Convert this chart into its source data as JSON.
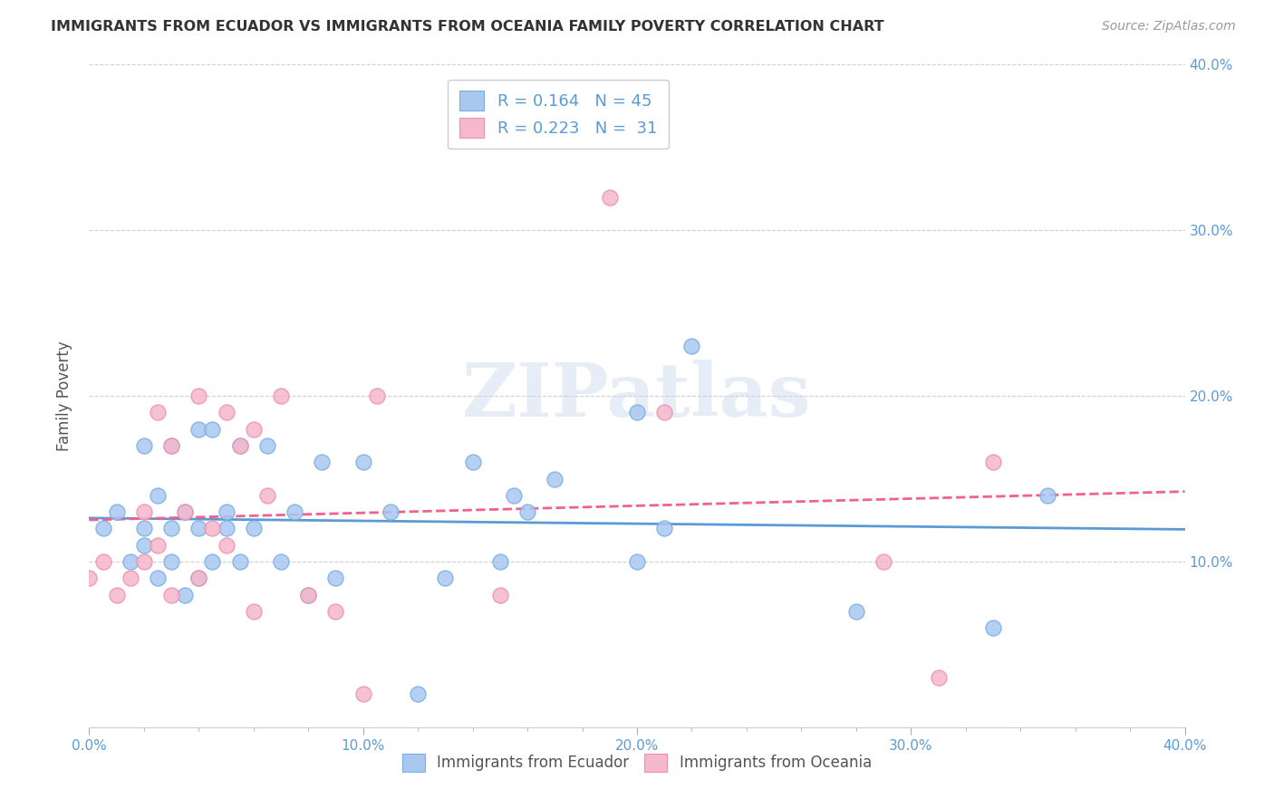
{
  "title": "IMMIGRANTS FROM ECUADOR VS IMMIGRANTS FROM OCEANIA FAMILY POVERTY CORRELATION CHART",
  "source": "Source: ZipAtlas.com",
  "ylabel": "Family Poverty",
  "xlim": [
    0.0,
    0.4
  ],
  "ylim": [
    0.0,
    0.4
  ],
  "xtick_labels": [
    "0.0%",
    "",
    "",
    "",
    "",
    "10.0%",
    "",
    "",
    "",
    "",
    "20.0%",
    "",
    "",
    "",
    "",
    "30.0%",
    "",
    "",
    "",
    "",
    "40.0%"
  ],
  "xtick_vals": [
    0.0,
    0.02,
    0.04,
    0.06,
    0.08,
    0.1,
    0.12,
    0.14,
    0.16,
    0.18,
    0.2,
    0.22,
    0.24,
    0.26,
    0.28,
    0.3,
    0.32,
    0.34,
    0.36,
    0.38,
    0.4
  ],
  "xtick_major_labels": [
    "0.0%",
    "10.0%",
    "20.0%",
    "30.0%",
    "40.0%"
  ],
  "xtick_major_vals": [
    0.0,
    0.1,
    0.2,
    0.3,
    0.4
  ],
  "ytick_vals": [
    0.1,
    0.2,
    0.3,
    0.4
  ],
  "ytick_labels": [
    "10.0%",
    "20.0%",
    "30.0%",
    "40.0%"
  ],
  "ecuador_color": "#a8c8f0",
  "oceania_color": "#f5b8cc",
  "ecuador_edge_color": "#7aaee0",
  "oceania_edge_color": "#ef90b0",
  "ecuador_line_color": "#5b9bd5",
  "oceania_line_color": "#f06090",
  "ecuador_R": "0.164",
  "ecuador_N": "45",
  "oceania_R": "0.223",
  "oceania_N": "31",
  "background_color": "#ffffff",
  "watermark_text": "ZIPatlas",
  "grid_color": "#d0d0d0",
  "tick_color": "#aaaaaa",
  "right_label_color": "#5b9bd5",
  "bottom_label_color": "#5b9bd5",
  "ecuador_x": [
    0.005,
    0.01,
    0.015,
    0.02,
    0.02,
    0.02,
    0.025,
    0.025,
    0.03,
    0.03,
    0.03,
    0.035,
    0.035,
    0.04,
    0.04,
    0.04,
    0.045,
    0.045,
    0.05,
    0.05,
    0.055,
    0.055,
    0.06,
    0.065,
    0.07,
    0.075,
    0.08,
    0.085,
    0.09,
    0.1,
    0.11,
    0.12,
    0.13,
    0.14,
    0.15,
    0.155,
    0.16,
    0.17,
    0.2,
    0.2,
    0.21,
    0.22,
    0.28,
    0.33,
    0.35
  ],
  "ecuador_y": [
    0.12,
    0.13,
    0.1,
    0.11,
    0.12,
    0.17,
    0.09,
    0.14,
    0.1,
    0.12,
    0.17,
    0.08,
    0.13,
    0.09,
    0.12,
    0.18,
    0.1,
    0.18,
    0.12,
    0.13,
    0.1,
    0.17,
    0.12,
    0.17,
    0.1,
    0.13,
    0.08,
    0.16,
    0.09,
    0.16,
    0.13,
    0.02,
    0.09,
    0.16,
    0.1,
    0.14,
    0.13,
    0.15,
    0.1,
    0.19,
    0.12,
    0.23,
    0.07,
    0.06,
    0.14
  ],
  "oceania_x": [
    0.0,
    0.005,
    0.01,
    0.015,
    0.02,
    0.02,
    0.025,
    0.025,
    0.03,
    0.03,
    0.035,
    0.04,
    0.04,
    0.045,
    0.05,
    0.05,
    0.055,
    0.06,
    0.06,
    0.065,
    0.07,
    0.08,
    0.09,
    0.1,
    0.105,
    0.15,
    0.19,
    0.21,
    0.29,
    0.31,
    0.33
  ],
  "oceania_y": [
    0.09,
    0.1,
    0.08,
    0.09,
    0.1,
    0.13,
    0.11,
    0.19,
    0.08,
    0.17,
    0.13,
    0.09,
    0.2,
    0.12,
    0.11,
    0.19,
    0.17,
    0.07,
    0.18,
    0.14,
    0.2,
    0.08,
    0.07,
    0.02,
    0.2,
    0.08,
    0.32,
    0.19,
    0.1,
    0.03,
    0.16
  ]
}
